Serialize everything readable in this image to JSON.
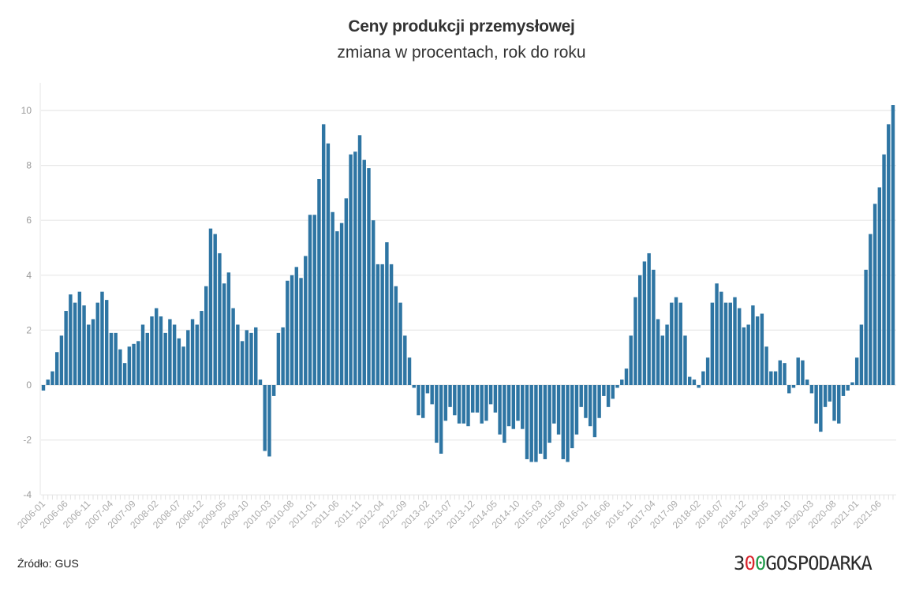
{
  "chart_data": {
    "type": "bar",
    "title": "Ceny produkcji przemysłowej",
    "subtitle": "zmiana w procentach, rok do roku",
    "xlabel": "",
    "ylabel": "",
    "ylim": [
      -4,
      11
    ],
    "yticks": [
      -4,
      -2,
      0,
      2,
      4,
      6,
      8,
      10
    ],
    "grid": true,
    "bar_color": "#2e75a3",
    "xtick_labels": [
      "2006-01",
      "2006-06",
      "2006-11",
      "2007-04",
      "2007-09",
      "2008-02",
      "2008-07",
      "2008-12",
      "2009-05",
      "2009-10",
      "2010-03",
      "2010-08",
      "2011-01",
      "2011-06",
      "2011-11",
      "2012-04",
      "2012-09",
      "2013-02",
      "2013-07",
      "2013-12",
      "2014-05",
      "2014-10",
      "2015-03",
      "2015-08",
      "2016-01",
      "2016-06",
      "2016-11",
      "2017-04",
      "2017-09",
      "2018-02",
      "2018-07",
      "2018-12",
      "2019-05",
      "2019-10",
      "2020-03",
      "2020-08",
      "2021-01",
      "2021-06"
    ],
    "categories": [
      "2006-01",
      "2006-02",
      "2006-03",
      "2006-04",
      "2006-05",
      "2006-06",
      "2006-07",
      "2006-08",
      "2006-09",
      "2006-10",
      "2006-11",
      "2006-12",
      "2007-01",
      "2007-02",
      "2007-03",
      "2007-04",
      "2007-05",
      "2007-06",
      "2007-07",
      "2007-08",
      "2007-09",
      "2007-10",
      "2007-11",
      "2007-12",
      "2008-01",
      "2008-02",
      "2008-03",
      "2008-04",
      "2008-05",
      "2008-06",
      "2008-07",
      "2008-08",
      "2008-09",
      "2008-10",
      "2008-11",
      "2008-12",
      "2009-01",
      "2009-02",
      "2009-03",
      "2009-04",
      "2009-05",
      "2009-06",
      "2009-07",
      "2009-08",
      "2009-09",
      "2009-10",
      "2009-11",
      "2009-12",
      "2010-01",
      "2010-02",
      "2010-03",
      "2010-04",
      "2010-05",
      "2010-06",
      "2010-07",
      "2010-08",
      "2010-09",
      "2010-10",
      "2010-11",
      "2010-12",
      "2011-01",
      "2011-02",
      "2011-03",
      "2011-04",
      "2011-05",
      "2011-06",
      "2011-07",
      "2011-08",
      "2011-09",
      "2011-10",
      "2011-11",
      "2011-12",
      "2012-01",
      "2012-02",
      "2012-03",
      "2012-04",
      "2012-05",
      "2012-06",
      "2012-07",
      "2012-08",
      "2012-09",
      "2012-10",
      "2012-11",
      "2012-12",
      "2013-01",
      "2013-02",
      "2013-03",
      "2013-04",
      "2013-05",
      "2013-06",
      "2013-07",
      "2013-08",
      "2013-09",
      "2013-10",
      "2013-11",
      "2013-12",
      "2014-01",
      "2014-02",
      "2014-03",
      "2014-04",
      "2014-05",
      "2014-06",
      "2014-07",
      "2014-08",
      "2014-09",
      "2014-10",
      "2014-11",
      "2014-12",
      "2015-01",
      "2015-02",
      "2015-03",
      "2015-04",
      "2015-05",
      "2015-06",
      "2015-07",
      "2015-08",
      "2015-09",
      "2015-10",
      "2015-11",
      "2015-12",
      "2016-01",
      "2016-02",
      "2016-03",
      "2016-04",
      "2016-05",
      "2016-06",
      "2016-07",
      "2016-08",
      "2016-09",
      "2016-10",
      "2016-11",
      "2016-12",
      "2017-01",
      "2017-02",
      "2017-03",
      "2017-04",
      "2017-05",
      "2017-06",
      "2017-07",
      "2017-08",
      "2017-09",
      "2017-10",
      "2017-11",
      "2017-12",
      "2018-01",
      "2018-02",
      "2018-03",
      "2018-04",
      "2018-05",
      "2018-06",
      "2018-07",
      "2018-08",
      "2018-09",
      "2018-10",
      "2018-11",
      "2018-12",
      "2019-01",
      "2019-02",
      "2019-03",
      "2019-04",
      "2019-05",
      "2019-06",
      "2019-07",
      "2019-08",
      "2019-09",
      "2019-10",
      "2019-11",
      "2019-12",
      "2020-01",
      "2020-02",
      "2020-03",
      "2020-04",
      "2020-05",
      "2020-06",
      "2020-07",
      "2020-08",
      "2020-09",
      "2020-10",
      "2020-11",
      "2020-12",
      "2021-01",
      "2021-02",
      "2021-03",
      "2021-04",
      "2021-05",
      "2021-06",
      "2021-07",
      "2021-08",
      "2021-09"
    ],
    "values": [
      -0.2,
      0.2,
      0.5,
      1.2,
      1.8,
      2.7,
      3.3,
      3.0,
      3.4,
      2.9,
      2.2,
      2.4,
      3.0,
      3.4,
      3.1,
      1.9,
      1.9,
      1.3,
      0.8,
      1.4,
      1.5,
      1.6,
      2.2,
      1.9,
      2.5,
      2.8,
      2.5,
      1.9,
      2.4,
      2.2,
      1.7,
      1.4,
      2.0,
      2.4,
      2.2,
      2.7,
      3.6,
      5.7,
      5.5,
      4.8,
      3.7,
      4.1,
      2.8,
      2.2,
      1.6,
      2.0,
      1.9,
      2.1,
      0.2,
      -2.4,
      -2.6,
      -0.4,
      1.9,
      2.1,
      3.8,
      4.0,
      4.3,
      3.9,
      4.7,
      6.2,
      6.2,
      7.5,
      9.5,
      8.8,
      6.3,
      5.6,
      5.9,
      6.8,
      8.4,
      8.5,
      9.1,
      8.2,
      7.9,
      6.0,
      4.4,
      4.4,
      5.2,
      4.4,
      3.6,
      3.0,
      1.8,
      1.0,
      -0.1,
      -1.1,
      -1.2,
      -0.3,
      -0.7,
      -2.1,
      -2.5,
      -1.3,
      -0.8,
      -1.1,
      -1.4,
      -1.4,
      -1.5,
      -1.0,
      -1.0,
      -1.4,
      -1.3,
      -0.7,
      -1.0,
      -1.8,
      -2.1,
      -1.5,
      -1.6,
      -1.3,
      -1.6,
      -2.7,
      -2.8,
      -2.8,
      -2.5,
      -2.7,
      -2.1,
      -1.4,
      -1.8,
      -2.7,
      -2.8,
      -2.3,
      -1.8,
      -0.8,
      -1.2,
      -1.5,
      -1.9,
      -1.2,
      -0.4,
      -0.8,
      -0.5,
      -0.1,
      0.2,
      0.6,
      1.8,
      3.2,
      4.0,
      4.5,
      4.8,
      4.2,
      2.4,
      1.8,
      2.2,
      3.0,
      3.2,
      3.0,
      1.8,
      0.3,
      0.2,
      -0.1,
      0.5,
      1.0,
      3.0,
      3.7,
      3.4,
      3.0,
      3.0,
      3.2,
      2.8,
      2.1,
      2.2,
      2.9,
      2.5,
      2.6,
      1.4,
      0.5,
      0.5,
      0.9,
      0.8,
      -0.3,
      -0.1,
      1.0,
      0.9,
      0.2,
      -0.3,
      -1.4,
      -1.7,
      -0.8,
      -0.6,
      -1.3,
      -1.4,
      -0.4,
      -0.2,
      0.1,
      1.0,
      2.2,
      4.2,
      5.5,
      6.6,
      7.2,
      8.4,
      9.5,
      10.2
    ]
  },
  "footer": {
    "source": "Źródło: GUS",
    "logo": {
      "part1": "3",
      "part2": "0",
      "part3": "0",
      "part4": "GOSPODARKA",
      "colors": {
        "dark": "#2a2a2a",
        "red": "#d9262e",
        "green": "#1e9a48"
      }
    }
  }
}
